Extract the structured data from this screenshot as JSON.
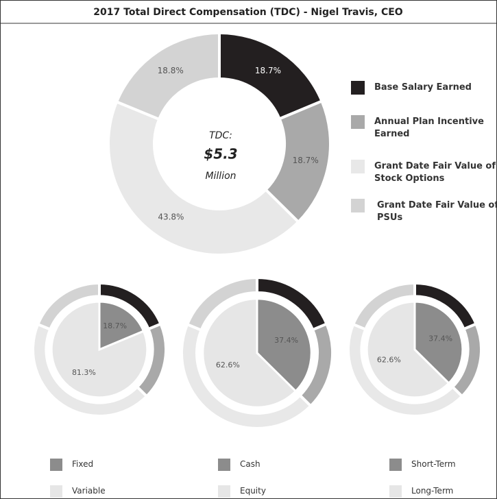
{
  "chart_data": [
    {
      "type": "donut",
      "title": "2017 Total Direct Compensation (TDC) - Nigel Travis, CEO",
      "center_text": [
        "TDC:",
        "$5.3",
        "Million"
      ],
      "categories": [
        "Base Salary Earned",
        "Annual Plan Incentive Earned",
        "Grant Date Fair Value of Stock Options",
        "Grant Date Fair Value of PSUs"
      ],
      "values": [
        18.7,
        18.7,
        43.8,
        18.8
      ],
      "value_labels": [
        "18.7%",
        "18.7%",
        "43.8%",
        "18.8%"
      ],
      "colors": [
        "#231f20",
        "#a9a9a9",
        "#e8e8e8",
        "#d3d3d3"
      ]
    },
    {
      "type": "nested-pie",
      "categories": [
        "Fixed",
        "Variable"
      ],
      "values": [
        18.7,
        81.3
      ],
      "value_labels": [
        "18.7%",
        "81.3%"
      ],
      "colors": [
        "#8c8c8c",
        "#e6e6e6"
      ]
    },
    {
      "type": "nested-pie",
      "categories": [
        "Cash",
        "Equity"
      ],
      "values": [
        37.4,
        62.6
      ],
      "value_labels": [
        "37.4%",
        "62.6%"
      ],
      "colors": [
        "#8c8c8c",
        "#e6e6e6"
      ]
    },
    {
      "type": "nested-pie",
      "categories": [
        "Short-Term",
        "Long-Term"
      ],
      "values": [
        37.4,
        62.6
      ],
      "value_labels": [
        "37.4%",
        "62.6%"
      ],
      "colors": [
        "#8c8c8c",
        "#e6e6e6"
      ]
    }
  ]
}
